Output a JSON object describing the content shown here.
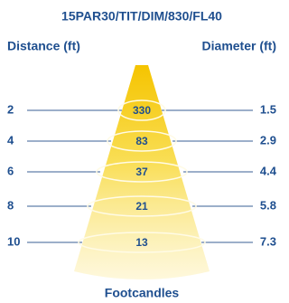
{
  "header": {
    "title": "15PAR30/TIT/DIM/830/FL40",
    "left_label": "Distance (ft)",
    "right_label": "Diameter (ft)"
  },
  "rows": [
    {
      "distance": 2,
      "footcandles": 330,
      "diameter": 1.5
    },
    {
      "distance": 4,
      "footcandles": 83,
      "diameter": 2.9
    },
    {
      "distance": 6,
      "footcandles": 37,
      "diameter": 4.4
    },
    {
      "distance": 8,
      "footcandles": 21,
      "diameter": 5.8
    },
    {
      "distance": 10,
      "footcandles": 13,
      "diameter": 7.3
    }
  ],
  "footer": {
    "label": "Footcandles"
  }
}
